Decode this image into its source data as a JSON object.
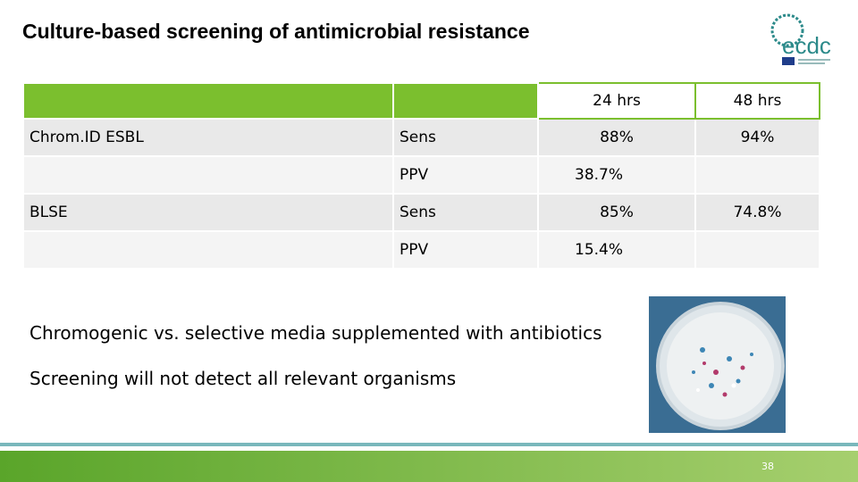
{
  "header": {
    "title": "Culture-based screening of antimicrobial resistance",
    "logo": "ecdc"
  },
  "table": {
    "columns": [
      null,
      null,
      "24 hrs",
      "48 hrs"
    ],
    "rows": [
      [
        "Chrom.ID ESBL",
        "Sens",
        "88%",
        "94%"
      ],
      [
        null,
        "PPV",
        "38.7%",
        null
      ],
      [
        "BLSE",
        "Sens",
        "85%",
        "74.8%"
      ],
      [
        null,
        "PPV",
        "15.4%",
        null
      ]
    ]
  },
  "bullets": [
    "Chromogenic vs. selective media supplemented with antibiotics",
    "Screening will not detect all relevant organisms"
  ],
  "footer": {
    "page": "38"
  }
}
